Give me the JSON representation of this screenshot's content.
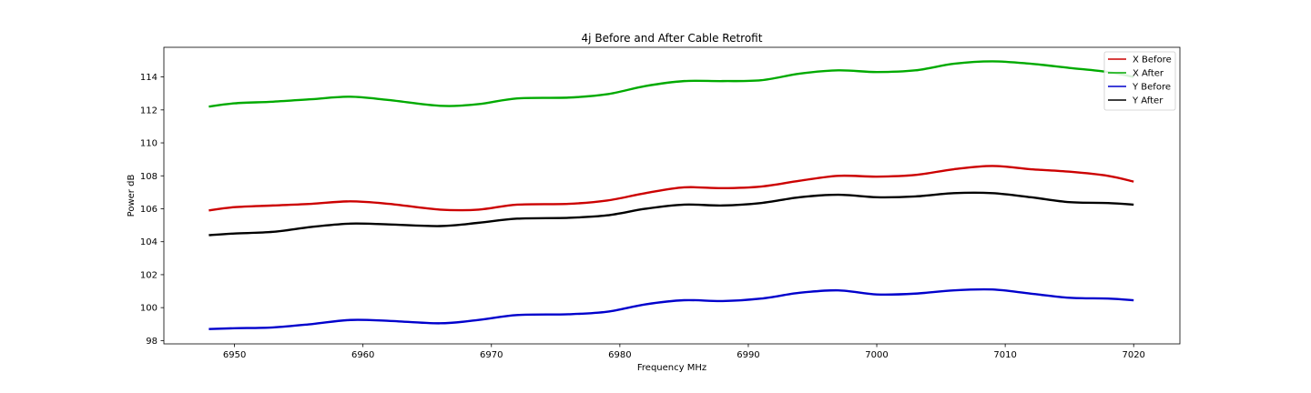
{
  "chart_data": {
    "type": "line",
    "title": "4j Before and After Cable Retrofit",
    "xlabel": "Frequency MHz",
    "ylabel": "Power dB",
    "xlim": [
      6944.5,
      7023.6
    ],
    "ylim": [
      97.8,
      115.8
    ],
    "xticks": [
      6950,
      6960,
      6970,
      6980,
      6990,
      7000,
      7010,
      7020
    ],
    "yticks": [
      98,
      100,
      102,
      104,
      106,
      108,
      110,
      112,
      114
    ],
    "grid": false,
    "legend_position": "top-right",
    "x": [
      6948,
      6950,
      6953,
      6956,
      6959,
      6962,
      6966,
      6969,
      6972,
      6976,
      6979,
      6982,
      6985,
      6988,
      6991,
      6994,
      6997,
      7000,
      7003,
      7006,
      7009,
      7012,
      7015,
      7018,
      7020
    ],
    "series": [
      {
        "name": "X Before",
        "color": "#cc0000",
        "values": [
          105.9,
          106.1,
          106.2,
          106.3,
          106.45,
          106.3,
          105.95,
          105.95,
          106.25,
          106.3,
          106.5,
          106.95,
          107.3,
          107.25,
          107.35,
          107.7,
          108.0,
          107.95,
          108.05,
          108.4,
          108.6,
          108.4,
          108.25,
          108.0,
          107.65
        ]
      },
      {
        "name": "X After",
        "color": "#00aa00",
        "values": [
          112.2,
          112.4,
          112.5,
          112.65,
          112.8,
          112.6,
          112.25,
          112.35,
          112.7,
          112.75,
          112.95,
          113.45,
          113.75,
          113.75,
          113.8,
          114.2,
          114.4,
          114.3,
          114.4,
          114.8,
          114.95,
          114.8,
          114.55,
          114.3,
          114.0
        ]
      },
      {
        "name": "Y Before",
        "color": "#0000cc",
        "values": [
          98.7,
          98.75,
          98.8,
          99.0,
          99.25,
          99.2,
          99.05,
          99.25,
          99.55,
          99.6,
          99.75,
          100.2,
          100.45,
          100.4,
          100.55,
          100.9,
          101.05,
          100.8,
          100.85,
          101.05,
          101.1,
          100.85,
          100.6,
          100.55,
          100.45
        ]
      },
      {
        "name": "Y After",
        "color": "#000000",
        "values": [
          104.4,
          104.5,
          104.6,
          104.9,
          105.1,
          105.05,
          104.95,
          105.15,
          105.4,
          105.45,
          105.6,
          106.0,
          106.25,
          106.2,
          106.35,
          106.7,
          106.85,
          106.7,
          106.75,
          106.95,
          106.95,
          106.7,
          106.4,
          106.35,
          106.25
        ]
      }
    ]
  }
}
